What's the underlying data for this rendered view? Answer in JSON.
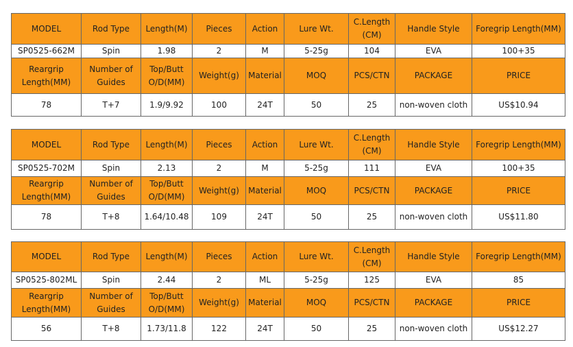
{
  "tables": [
    {
      "header1": [
        "MODEL",
        "Rod Type",
        "Length(M)",
        "Pieces",
        "Action",
        "Lure Wt.",
        "C.Length(CM)",
        "Handle Style",
        "Foregrip Length(MM)"
      ],
      "row1": [
        "SP0525-662M",
        "Spin",
        "1.98",
        "2",
        "M",
        "5-25g",
        "104",
        "EVA",
        "100+35"
      ],
      "header2": [
        "Reargrip Length(MM)",
        "Number of Guides",
        "Top/Butt O/D(MM)",
        "Weight(g)",
        "Material",
        "MOQ",
        "PCS/CTN",
        "PACKAGE",
        "PRICE"
      ],
      "row2": [
        "78",
        "T+7",
        "1.9/9.92",
        "100",
        "24T",
        "50",
        "25",
        "non-woven cloth",
        "US$10.94"
      ]
    },
    {
      "header1": [
        "MODEL",
        "Rod Type",
        "Length(M)",
        "Pieces",
        "Action",
        "Lure Wt.",
        "C.Length(CM)",
        "Handle Style",
        "Foregrip Length(MM)"
      ],
      "row1": [
        "SP0525-702M",
        "Spin",
        "2.13",
        "2",
        "M",
        "5-25g",
        "111",
        "EVA",
        "100+35"
      ],
      "header2": [
        "Reargrip Length(MM)",
        "Number of Guides",
        "Top/Butt O/D(MM)",
        "Weight(g)",
        "Material",
        "MOQ",
        "PCS/CTN",
        "PACKAGE",
        "PRICE"
      ],
      "row2": [
        "78",
        "T+8",
        "1.64/10.48",
        "109",
        "24T",
        "50",
        "25",
        "non-woven cloth",
        "US$11.80"
      ]
    },
    {
      "header1": [
        "MODEL",
        "Rod Type",
        "Length(M)",
        "Pieces",
        "Action",
        "Lure Wt.",
        "C.Length(CM)",
        "Handle Style",
        "Foregrip Length(MM)"
      ],
      "row1": [
        "SP0525-802ML",
        "Spin",
        "2.44",
        "2",
        "ML",
        "5-25g",
        "125",
        "EVA",
        "85"
      ],
      "header2": [
        "Reargrip Length(MM)",
        "Number of Guides",
        "Top/Butt O/D(MM)",
        "Weight(g)",
        "Material",
        "MOQ",
        "PCS/CTN",
        "PACKAGE",
        "PRICE"
      ],
      "row2": [
        "56",
        "T+8",
        "1.73/11.8",
        "122",
        "24T",
        "50",
        "25",
        "non-woven cloth",
        "US$12.27"
      ]
    }
  ]
}
